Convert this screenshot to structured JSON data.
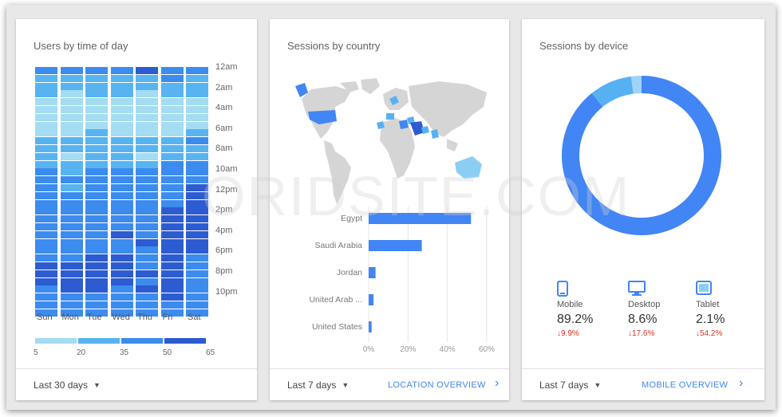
{
  "watermark": "ORIDSITE.COM",
  "colors": {
    "accent": "#4285f4",
    "negative": "#d93025"
  },
  "heatmap_card": {
    "title": "Users by time of day",
    "range_label": "Last 30 days",
    "hour_labels": [
      "12am",
      "2am",
      "4am",
      "6am",
      "8am",
      "10am",
      "12pm",
      "2pm",
      "4pm",
      "6pm",
      "8pm",
      "10pm"
    ],
    "day_labels": [
      "Sun",
      "Mon",
      "Tue",
      "Wed",
      "Thu",
      "Fri",
      "Sat"
    ],
    "legend_labels": [
      "5",
      "20",
      "35",
      "50",
      "65"
    ],
    "legend_colors": [
      "#a3dcf3",
      "#57b4f1",
      "#3c8bef",
      "#2d5bd1"
    ],
    "values": [
      [
        40,
        38,
        42,
        40,
        52,
        40,
        42
      ],
      [
        30,
        32,
        30,
        34,
        32,
        35,
        34
      ],
      [
        22,
        25,
        23,
        24,
        22,
        20,
        22
      ],
      [
        20,
        18,
        22,
        20,
        18,
        20,
        20
      ],
      [
        15,
        14,
        17,
        14,
        16,
        15,
        17
      ],
      [
        14,
        12,
        14,
        13,
        14,
        15,
        14
      ],
      [
        12,
        11,
        13,
        12,
        11,
        14,
        12
      ],
      [
        12,
        12,
        12,
        14,
        12,
        12,
        11
      ],
      [
        14,
        14,
        20,
        15,
        13,
        15,
        20
      ],
      [
        30,
        32,
        28,
        30,
        32,
        30,
        35
      ],
      [
        20,
        22,
        24,
        22,
        20,
        22,
        24
      ],
      [
        22,
        18,
        23,
        20,
        18,
        22,
        20
      ],
      [
        32,
        34,
        32,
        34,
        32,
        40,
        38
      ],
      [
        36,
        34,
        36,
        38,
        36,
        45,
        40
      ],
      [
        38,
        38,
        40,
        38,
        36,
        45,
        38
      ],
      [
        36,
        34,
        38,
        36,
        36,
        48,
        55
      ],
      [
        38,
        40,
        38,
        40,
        38,
        42,
        60
      ],
      [
        40,
        42,
        42,
        44,
        40,
        46,
        55
      ],
      [
        42,
        40,
        44,
        42,
        44,
        50,
        60
      ],
      [
        44,
        42,
        46,
        44,
        42,
        56,
        56
      ],
      [
        40,
        44,
        42,
        44,
        42,
        58,
        50
      ],
      [
        44,
        46,
        48,
        50,
        48,
        55,
        52
      ],
      [
        42,
        44,
        46,
        44,
        50,
        60,
        54
      ],
      [
        40,
        42,
        44,
        44,
        44,
        55,
        52
      ],
      [
        44,
        48,
        50,
        52,
        46,
        56,
        48
      ],
      [
        50,
        52,
        54,
        52,
        46,
        58,
        45
      ],
      [
        54,
        56,
        52,
        55,
        50,
        62,
        44
      ],
      [
        50,
        50,
        52,
        50,
        48,
        56,
        44
      ],
      [
        48,
        52,
        50,
        48,
        50,
        54,
        46
      ],
      [
        44,
        46,
        48,
        46,
        44,
        50,
        44
      ],
      [
        42,
        44,
        44,
        44,
        42,
        48,
        42
      ],
      [
        40,
        40,
        42,
        42,
        40,
        44,
        40
      ]
    ]
  },
  "country_card": {
    "title": "Sessions by country",
    "range_label": "Last 7 days",
    "link_label": "LOCATION OVERVIEW",
    "chart_data": {
      "type": "bar",
      "orientation": "horizontal",
      "categories": [
        "Egypt",
        "Saudi Arabia",
        "Jordan",
        "United Arab ...",
        "United States"
      ],
      "values": [
        52,
        27,
        3.5,
        2.5,
        1.5
      ],
      "xlim": [
        0,
        60
      ],
      "ticks": [
        "0%",
        "20%",
        "40%",
        "60%"
      ],
      "tick_values": [
        0,
        20,
        40,
        60
      ]
    }
  },
  "device_card": {
    "title": "Sessions by device",
    "range_label": "Last 7 days",
    "link_label": "MOBILE OVERVIEW",
    "chart_data": {
      "type": "pie",
      "style": "donut",
      "categories": [
        "Mobile",
        "Desktop",
        "Tablet"
      ],
      "values": [
        89.2,
        8.6,
        2.1
      ],
      "colors": [
        "#4285f4",
        "#56b1f3",
        "#9fd3f5"
      ]
    },
    "devices": [
      {
        "name": "Mobile",
        "value": "89.2%",
        "change": "9.9%",
        "icon": "phone-icon"
      },
      {
        "name": "Desktop",
        "value": "8.6%",
        "change": "17.6%",
        "icon": "monitor-icon"
      },
      {
        "name": "Tablet",
        "value": "2.1%",
        "change": "54.2%",
        "icon": "tablet-icon"
      }
    ]
  }
}
